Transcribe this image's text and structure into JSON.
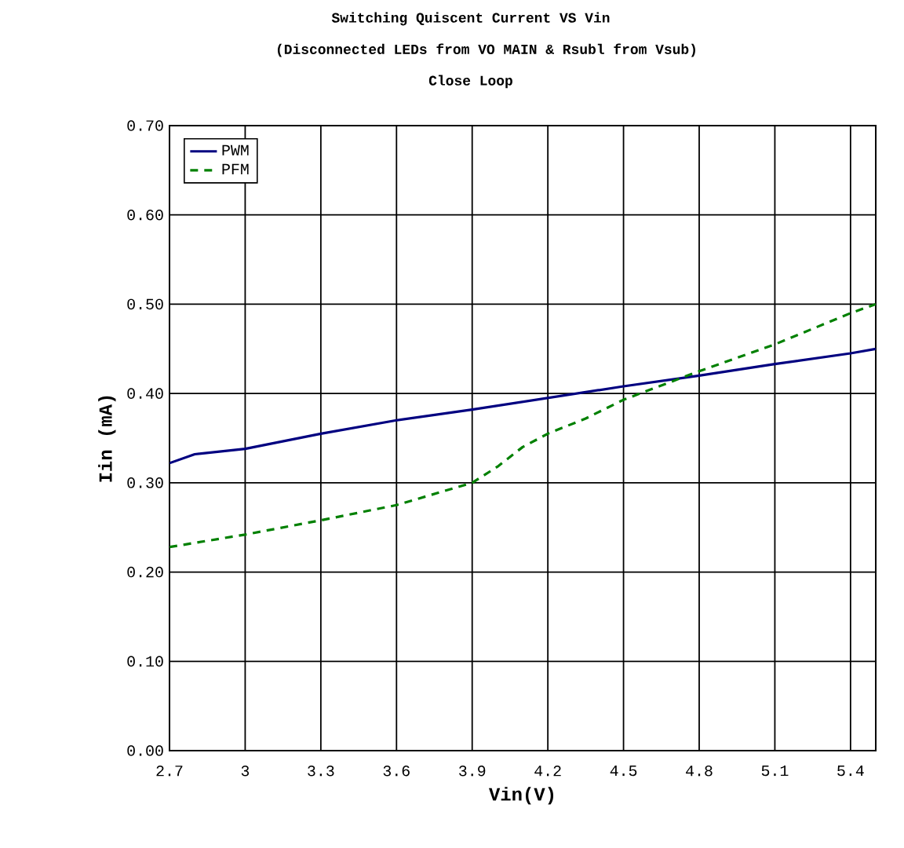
{
  "chart_data": {
    "type": "line",
    "title": "Switching Quiscent Current VS Vin",
    "subtitle": "(Disconnected LEDs from VO MAIN & Rsubl from Vsub)",
    "annotations": [
      "Close Loop"
    ],
    "xlabel": "Vin(V)",
    "ylabel": "Iin (mA)",
    "xlim": [
      2.7,
      5.5
    ],
    "xticks": [
      2.7,
      3,
      3.3,
      3.6,
      3.9,
      4.2,
      4.5,
      4.8,
      5.1,
      5.4
    ],
    "ylim": [
      0,
      0.7
    ],
    "yticks": [
      {
        "value": 0,
        "label": "0.00"
      },
      {
        "value": 0.1,
        "label": "0.10"
      },
      {
        "value": 0.2,
        "label": "0.20"
      },
      {
        "value": 0.3,
        "label": "0.30"
      },
      {
        "value": 0.4,
        "label": "0.40"
      },
      {
        "value": 0.5,
        "label": "0.50"
      },
      {
        "value": 0.6,
        "label": "0.60"
      },
      {
        "value": 0.7,
        "label": "0.70"
      }
    ],
    "grid": true,
    "legend": "top left",
    "marker": "none",
    "series": [
      {
        "name": "PWM",
        "color": "#000080",
        "line_style": "solid",
        "x": [
          2.7,
          2.8,
          3.0,
          3.3,
          3.6,
          3.9,
          4.2,
          4.5,
          4.8,
          5.1,
          5.4,
          5.5
        ],
        "values": [
          0.322,
          0.332,
          0.338,
          0.355,
          0.37,
          0.382,
          0.395,
          0.408,
          0.42,
          0.433,
          0.445,
          0.45
        ]
      },
      {
        "name": "PFM",
        "color": "#008000",
        "line_style": "dashed",
        "x": [
          2.7,
          3.0,
          3.3,
          3.6,
          3.9,
          4.0,
          4.1,
          4.2,
          4.35,
          4.5,
          4.8,
          5.1,
          5.4,
          5.5
        ],
        "values": [
          0.228,
          0.242,
          0.258,
          0.275,
          0.3,
          0.318,
          0.34,
          0.355,
          0.372,
          0.393,
          0.425,
          0.455,
          0.49,
          0.5
        ]
      }
    ]
  }
}
